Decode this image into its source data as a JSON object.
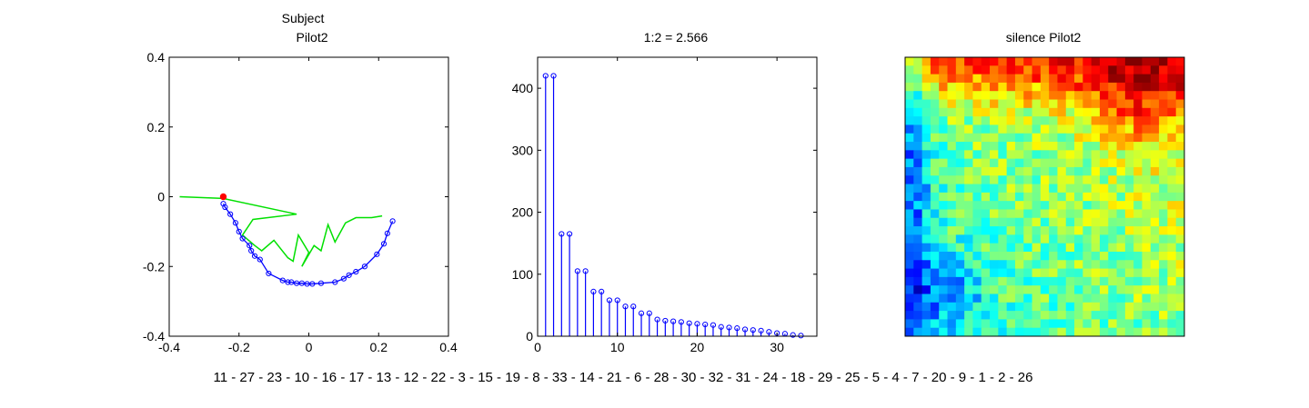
{
  "colors": {
    "traj_blue": "#0000ff",
    "traj_green": "#00e000",
    "start_red": "#ff0000",
    "stem_blue": "#0000ff"
  },
  "order_text": "11 - 27 - 23 - 10 - 16 - 17 - 13 - 12 - 22 - 3 - 15 - 19 - 8 - 33 - 14 - 21 - 6 - 28 - 30 - 32 - 31 - 24 - 18 - 29 - 25 - 5 - 4 - 7 - 20 - 9 - 1 - 2 - 26",
  "chart_data": [
    {
      "type": "line",
      "title": [
        "Subject",
        "Pilot2"
      ],
      "xlim": [
        -0.4,
        0.4
      ],
      "ylim": [
        -0.4,
        0.4
      ],
      "xticks": [
        "-0.4",
        "-0.2",
        "0",
        "0.2",
        "0.4"
      ],
      "yticks": [
        "0.4",
        "0.2",
        "0",
        "-0.2",
        "-0.4"
      ],
      "grid": false,
      "series": [
        {
          "style": "blue line with circle markers",
          "x": [
            -0.245,
            -0.24,
            -0.225,
            -0.21,
            -0.2,
            -0.19,
            -0.17,
            -0.165,
            -0.155,
            -0.14,
            -0.115,
            -0.075,
            -0.06,
            -0.05,
            -0.035,
            -0.02,
            -0.005,
            0.01,
            0.035,
            0.075,
            0.1,
            0.115,
            0.135,
            0.16,
            0.195,
            0.215,
            0.225,
            0.24
          ],
          "y": [
            -0.02,
            -0.03,
            -0.05,
            -0.075,
            -0.1,
            -0.12,
            -0.14,
            -0.155,
            -0.17,
            -0.18,
            -0.22,
            -0.24,
            -0.245,
            -0.245,
            -0.248,
            -0.248,
            -0.25,
            -0.25,
            -0.248,
            -0.245,
            -0.235,
            -0.225,
            -0.215,
            -0.2,
            -0.165,
            -0.135,
            -0.105,
            -0.07
          ]
        },
        {
          "style": "green line",
          "x": [
            -0.245,
            -0.035,
            -0.16,
            -0.19,
            -0.155,
            -0.135,
            -0.1,
            -0.06,
            -0.045,
            -0.03,
            0.0,
            -0.02,
            0.015,
            0.035,
            0.055,
            0.075,
            0.105,
            0.135,
            0.18,
            0.21
          ],
          "y": [
            -0.005,
            -0.05,
            -0.065,
            -0.11,
            -0.14,
            -0.155,
            -0.125,
            -0.175,
            -0.185,
            -0.11,
            -0.16,
            -0.2,
            -0.14,
            -0.155,
            -0.08,
            -0.13,
            -0.075,
            -0.06,
            -0.06,
            -0.055
          ]
        },
        {
          "style": "green line",
          "x": [
            -0.245,
            -0.37
          ],
          "y": [
            -0.005,
            0.0
          ]
        },
        {
          "style": "red filled start marker",
          "x": [
            -0.245
          ],
          "y": [
            0.0
          ]
        }
      ]
    },
    {
      "type": "bar",
      "subtype": "stem",
      "title": "1:2 = 2.566",
      "xlim": [
        0,
        35
      ],
      "ylim": [
        0,
        450
      ],
      "xticks": [
        "0",
        "10",
        "20",
        "30"
      ],
      "yticks": [
        "400",
        "300",
        "200",
        "100",
        "0"
      ],
      "grid": false,
      "x": [
        1,
        2,
        3,
        4,
        5,
        6,
        7,
        8,
        9,
        10,
        11,
        12,
        13,
        14,
        15,
        16,
        17,
        18,
        19,
        20,
        21,
        22,
        23,
        24,
        25,
        26,
        27,
        28,
        29,
        30,
        31,
        32,
        33
      ],
      "values": [
        420,
        420,
        165,
        165,
        105,
        105,
        72,
        72,
        58,
        58,
        48,
        48,
        37,
        37,
        27,
        25,
        24,
        23,
        21,
        20,
        19,
        18,
        15,
        14,
        13,
        11,
        10,
        9,
        7,
        5,
        4,
        2,
        1
      ]
    },
    {
      "type": "heatmap",
      "title": "silence Pilot2",
      "colormap": "jet",
      "rows": 33,
      "cols": 33,
      "xticks": [],
      "yticks": []
    }
  ]
}
